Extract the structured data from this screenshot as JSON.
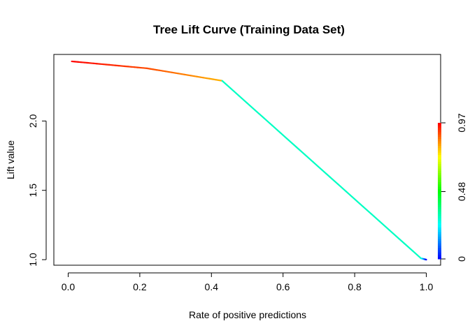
{
  "chart_data": {
    "type": "line",
    "title": "Tree Lift Curve (Training Data Set)",
    "xlabel": "Rate of positive predictions",
    "ylabel": "Lift value",
    "xlim": [
      -0.04,
      1.04
    ],
    "ylim": [
      0.96,
      2.48
    ],
    "x_ticks": [
      0.0,
      0.2,
      0.4,
      0.6,
      0.8,
      1.0
    ],
    "x_tick_labels": [
      "0.0",
      "0.2",
      "0.4",
      "0.6",
      "0.8",
      "1.0"
    ],
    "y_ticks": [
      1.0,
      1.5,
      2.0
    ],
    "y_tick_labels": [
      "1.0",
      "1.5",
      "2.0"
    ],
    "grid": false,
    "series": [
      {
        "points": [
          {
            "x": 0.01,
            "y": 2.43,
            "cutoff": 0.97
          },
          {
            "x": 0.22,
            "y": 2.38,
            "cutoff": 0.9
          },
          {
            "x": 0.43,
            "y": 2.29,
            "cutoff": 0.8
          },
          {
            "x": 0.985,
            "y": 1.01,
            "cutoff": 0.3
          },
          {
            "x": 1.0,
            "y": 1.0,
            "cutoff": 0.0
          }
        ]
      }
    ],
    "colorbar": {
      "ticks": [
        0,
        0.48,
        0.97
      ],
      "tick_labels": [
        "0",
        "0.48",
        "0.97"
      ],
      "range": [
        0,
        0.97
      ],
      "colormap": "rainbow"
    }
  }
}
